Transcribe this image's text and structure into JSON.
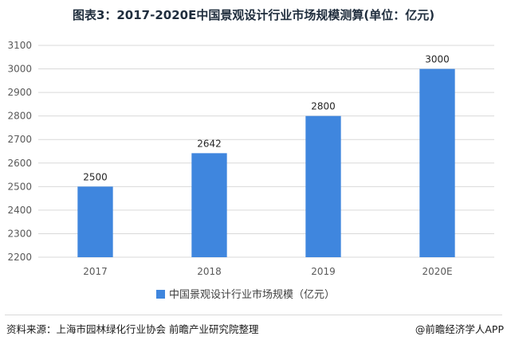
{
  "chart_data": {
    "type": "bar",
    "title": "图表3：2017-2020E中国景观设计行业市场规模测算(单位：亿元)",
    "categories": [
      "2017",
      "2018",
      "2019",
      "2020E"
    ],
    "series": [
      {
        "name": "中国景观设计行业市场规模（亿元）",
        "values": [
          2500,
          2642,
          2800,
          3000
        ]
      }
    ],
    "ylim": [
      2200,
      3100
    ],
    "yticks": [
      2200,
      2300,
      2400,
      2500,
      2600,
      2700,
      2800,
      2900,
      3000,
      3100
    ],
    "grid": true,
    "legend_position": "bottom",
    "bar_color": "#3f86de"
  },
  "footer": {
    "source": "资料来源：上海市园林绿化行业协会 前瞻产业研究院整理",
    "brand": "@前瞻经济学人APP"
  }
}
